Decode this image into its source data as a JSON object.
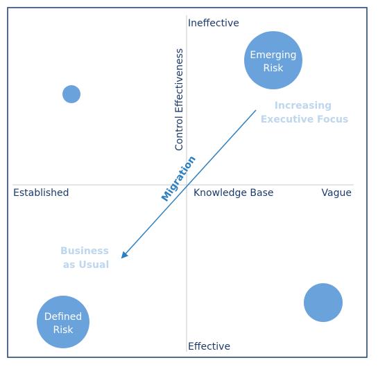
{
  "axes": {
    "top": "Ineffective",
    "bottom": "Effective",
    "left": "Established",
    "right": "Vague",
    "horizontal_title": "Knowledge Base",
    "vertical_title": "Control Effectiveness"
  },
  "bubbles": {
    "emerging": [
      "Emerging",
      "Risk"
    ],
    "defined": [
      "Defined",
      "Risk"
    ]
  },
  "annotations": {
    "increasing": [
      "Increasing",
      "Executive Focus"
    ],
    "business": [
      "Business",
      "as Usual"
    ],
    "migration": "Migration"
  },
  "colors": {
    "axis_text": "#1b3a6b",
    "bubble": "#6aa2dc",
    "bubble_text": "#ffffff",
    "annotation": "#bed6ee",
    "arrow": "#2c7fc0",
    "frame": "#1b3a6b",
    "axis_line": "#c9c9c9"
  }
}
